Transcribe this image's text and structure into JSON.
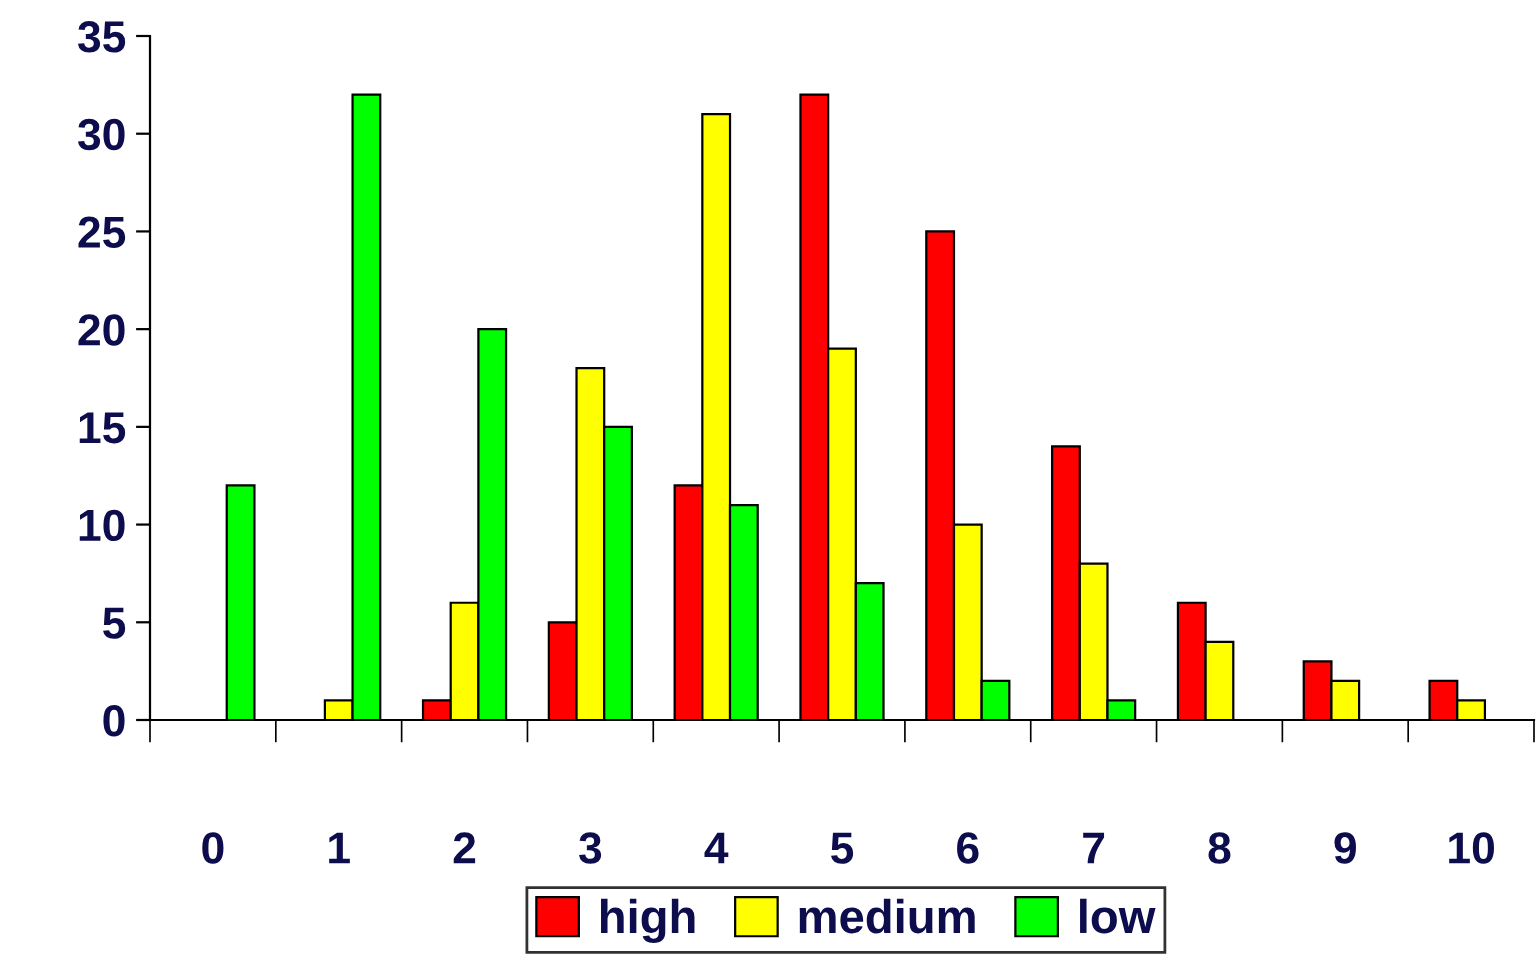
{
  "chart_data": {
    "type": "bar",
    "categories": [
      "0",
      "1",
      "2",
      "3",
      "4",
      "5",
      "6",
      "7",
      "8",
      "9",
      "10"
    ],
    "series": [
      {
        "name": "high",
        "color": "#ff0000",
        "values": [
          0,
          0,
          1,
          5,
          12,
          32,
          25,
          14,
          6,
          3,
          2
        ]
      },
      {
        "name": "medium",
        "color": "#ffff00",
        "values": [
          0,
          1,
          6,
          18,
          31,
          19,
          10,
          8,
          4,
          2,
          1
        ]
      },
      {
        "name": "low",
        "color": "#00ff00",
        "values": [
          12,
          32,
          20,
          15,
          11,
          7,
          2,
          1,
          0,
          0,
          0
        ]
      }
    ],
    "ylim": [
      0,
      35
    ],
    "yticks": [
      0,
      5,
      10,
      15,
      20,
      25,
      30,
      35
    ],
    "grid": false,
    "legend": "bottom"
  }
}
